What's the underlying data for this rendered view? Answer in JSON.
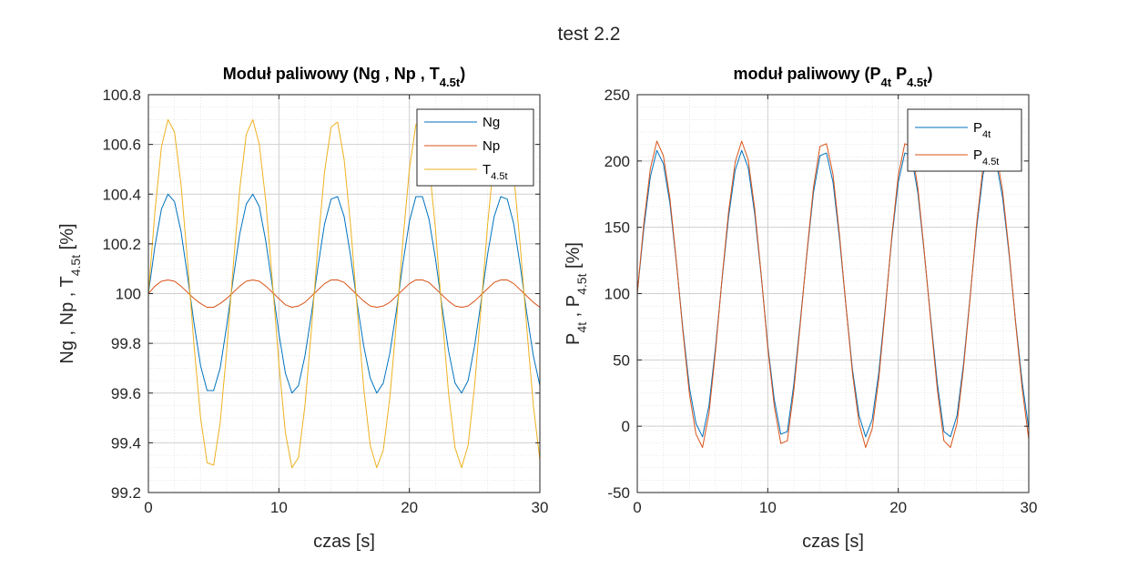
{
  "suptitle": "test 2.2",
  "colors": {
    "blue": "#0072BD",
    "orange": "#D95319",
    "yellow": "#EDB120",
    "grid": "#d9d9d9",
    "axis": "#262626"
  },
  "chart_data": [
    {
      "type": "line",
      "title": "Moduł paliwowy (Ng , Np , T",
      "title_sub": "4.5t",
      "title_tail": ")",
      "xlabel": "czas [s]",
      "ylabel": "Ng , Np , T",
      "ylabel_sub": "4.5t",
      "ylabel_tail": " [%]",
      "xlim": [
        0,
        30
      ],
      "ylim": [
        99.2,
        100.8
      ],
      "xticks": [
        0,
        10,
        20,
        30
      ],
      "yticks": [
        99.2,
        99.4,
        99.6,
        99.8,
        100,
        100.2,
        100.4,
        100.6,
        100.8
      ],
      "ytick_labels": [
        "99.2",
        "99.4",
        "99.6",
        "99.8",
        "100",
        "100.2",
        "100.4",
        "100.6",
        "100.8"
      ],
      "grid": "on (major + minor)",
      "legend_position": "top-right",
      "series": [
        {
          "name": "Ng",
          "color": "#0072BD",
          "x": [
            0,
            0.5,
            1,
            1.5,
            2,
            2.5,
            3,
            3.5,
            4,
            4.5,
            5,
            5.5,
            6,
            6.5,
            7,
            7.5,
            8,
            8.5,
            9,
            9.5,
            10,
            10.5,
            11,
            11.5,
            12,
            12.5,
            13,
            13.5,
            14,
            14.5,
            15,
            15.5,
            16,
            16.5,
            17,
            17.5,
            18,
            18.5,
            19,
            19.5,
            20,
            20.5,
            21,
            21.5,
            22,
            22.5,
            23,
            23.5,
            24,
            24.5,
            25,
            25.5,
            26,
            26.5,
            27,
            27.5,
            28,
            28.5,
            29,
            29.5,
            30
          ],
          "y": [
            100.0,
            100.19,
            100.34,
            100.4,
            100.37,
            100.25,
            100.07,
            99.88,
            99.71,
            99.61,
            99.61,
            99.7,
            99.87,
            100.06,
            100.24,
            100.36,
            100.4,
            100.35,
            100.21,
            100.03,
            99.84,
            99.68,
            99.6,
            99.63,
            99.75,
            99.92,
            100.11,
            100.28,
            100.38,
            100.39,
            100.31,
            100.15,
            99.96,
            99.79,
            99.66,
            99.6,
            99.64,
            99.76,
            99.93,
            100.12,
            100.29,
            100.39,
            100.39,
            100.3,
            100.14,
            99.95,
            99.77,
            99.64,
            99.6,
            99.65,
            99.79,
            99.97,
            100.16,
            100.31,
            100.39,
            100.38,
            100.28,
            100.11,
            99.92,
            99.75,
            99.63
          ]
        },
        {
          "name": "Np",
          "color": "#D95319",
          "x": [
            0,
            0.5,
            1,
            1.5,
            2,
            2.5,
            3,
            3.5,
            4,
            4.5,
            5,
            5.5,
            6,
            6.5,
            7,
            7.5,
            8,
            8.5,
            9,
            9.5,
            10,
            10.5,
            11,
            11.5,
            12,
            12.5,
            13,
            13.5,
            14,
            14.5,
            15,
            15.5,
            16,
            16.5,
            17,
            17.5,
            18,
            18.5,
            19,
            19.5,
            20,
            20.5,
            21,
            21.5,
            22,
            22.5,
            23,
            23.5,
            24,
            24.5,
            25,
            25.5,
            26,
            26.5,
            27,
            27.5,
            28,
            28.5,
            29,
            29.5,
            30
          ],
          "y": [
            100.0,
            100.03,
            100.05,
            100.055,
            100.05,
            100.03,
            100.005,
            99.98,
            99.96,
            99.945,
            99.945,
            99.96,
            99.98,
            100.005,
            100.03,
            100.05,
            100.055,
            100.05,
            100.03,
            100.005,
            99.98,
            99.955,
            99.945,
            99.95,
            99.965,
            99.99,
            100.015,
            100.04,
            100.055,
            100.055,
            100.045,
            100.02,
            99.995,
            99.97,
            99.95,
            99.945,
            99.95,
            99.965,
            99.99,
            100.015,
            100.04,
            100.055,
            100.055,
            100.045,
            100.02,
            99.995,
            99.97,
            99.95,
            99.945,
            99.95,
            99.97,
            99.995,
            100.02,
            100.045,
            100.055,
            100.055,
            100.04,
            100.015,
            99.99,
            99.965,
            99.945
          ]
        },
        {
          "name": "T",
          "name_sub": "4.5t",
          "color": "#EDB120",
          "x": [
            0,
            0.5,
            1,
            1.5,
            2,
            2.5,
            3,
            3.5,
            4,
            4.5,
            5,
            5.5,
            6,
            6.5,
            7,
            7.5,
            8,
            8.5,
            9,
            9.5,
            10,
            10.5,
            11,
            11.5,
            12,
            12.5,
            13,
            13.5,
            14,
            14.5,
            15,
            15.5,
            16,
            16.5,
            17,
            17.5,
            18,
            18.5,
            19,
            19.5,
            20,
            20.5,
            21,
            21.5,
            22,
            22.5,
            23,
            23.5,
            24,
            24.5,
            25,
            25.5,
            26,
            26.5,
            27,
            27.5,
            28,
            28.5,
            29,
            29.5,
            30
          ],
          "y": [
            100.0,
            100.33,
            100.59,
            100.7,
            100.65,
            100.44,
            100.13,
            99.79,
            99.5,
            99.32,
            99.31,
            99.48,
            99.77,
            100.11,
            100.42,
            100.64,
            100.7,
            100.6,
            100.37,
            100.05,
            99.72,
            99.44,
            99.3,
            99.34,
            99.55,
            99.86,
            100.2,
            100.49,
            100.67,
            100.69,
            100.54,
            100.27,
            99.94,
            99.62,
            99.39,
            99.3,
            99.37,
            99.58,
            99.88,
            100.21,
            100.5,
            100.68,
            100.68,
            100.53,
            100.26,
            99.92,
            99.6,
            99.38,
            99.3,
            99.39,
            99.63,
            99.95,
            100.28,
            100.55,
            100.69,
            100.67,
            100.48,
            100.19,
            99.86,
            99.55,
            99.33
          ]
        }
      ]
    },
    {
      "type": "line",
      "title": "moduł paliwowy (P",
      "title_sub": "4t",
      "title_mid": " P",
      "title_sub2": "4.5t",
      "title_tail": ")",
      "xlabel": "czas [s]",
      "ylabel": "P",
      "ylabel_sub": "4t",
      "ylabel_mid": " , P",
      "ylabel_sub2": "4.5t",
      "ylabel_tail": " [%]",
      "xlim": [
        0,
        30
      ],
      "ylim": [
        -50,
        250
      ],
      "xticks": [
        0,
        10,
        20,
        30
      ],
      "yticks": [
        -50,
        0,
        50,
        100,
        150,
        200,
        250
      ],
      "ytick_labels": [
        "-50",
        "0",
        "50",
        "100",
        "150",
        "200",
        "250"
      ],
      "grid": "on (major + minor)",
      "legend_position": "top-right",
      "series": [
        {
          "name": "P",
          "name_sub": "4t",
          "color": "#0072BD",
          "x": [
            0,
            0.5,
            1,
            1.5,
            2,
            2.5,
            3,
            3.5,
            4,
            4.5,
            5,
            5.5,
            6,
            6.5,
            7,
            7.5,
            8,
            8.5,
            9,
            9.5,
            10,
            10.5,
            11,
            11.5,
            12,
            12.5,
            13,
            13.5,
            14,
            14.5,
            15,
            15.5,
            16,
            16.5,
            17,
            17.5,
            18,
            18.5,
            19,
            19.5,
            20,
            20.5,
            21,
            21.5,
            22,
            22.5,
            23,
            23.5,
            24,
            24.5,
            25,
            25.5,
            26,
            26.5,
            27,
            27.5,
            28,
            28.5,
            29,
            29.5,
            30
          ],
          "y": [
            100,
            149,
            188,
            208,
            198,
            168,
            123,
            73,
            29,
            2,
            -8,
            16,
            60,
            111,
            158,
            193,
            208,
            195,
            160,
            113,
            61,
            20,
            -6,
            -4,
            32,
            80,
            130,
            176,
            204,
            206,
            184,
            141,
            90,
            42,
            8,
            -8,
            5,
            40,
            89,
            141,
            184,
            206,
            204,
            176,
            130,
            80,
            32,
            -4,
            -8,
            8,
            47,
            97,
            149,
            190,
            207,
            200,
            172,
            129,
            78,
            33,
            -2
          ]
        },
        {
          "name": "P",
          "name_sub": "4.5t",
          "color": "#D95319",
          "x": [
            0,
            0.5,
            1,
            1.5,
            2,
            2.5,
            3,
            3.5,
            4,
            4.5,
            5,
            5.5,
            6,
            6.5,
            7,
            7.5,
            8,
            8.5,
            9,
            9.5,
            10,
            10.5,
            11,
            11.5,
            12,
            12.5,
            13,
            13.5,
            14,
            14.5,
            15,
            15.5,
            16,
            16.5,
            17,
            17.5,
            18,
            18.5,
            19,
            19.5,
            20,
            20.5,
            21,
            21.5,
            22,
            22.5,
            23,
            23.5,
            24,
            24.5,
            25,
            25.5,
            26,
            26.5,
            27,
            27.5,
            28,
            28.5,
            29,
            29.5,
            30
          ],
          "y": [
            100,
            153,
            194,
            215,
            204,
            172,
            124,
            71,
            24,
            -6,
            -16,
            10,
            57,
            112,
            162,
            199,
            215,
            201,
            164,
            114,
            59,
            15,
            -13,
            -11,
            27,
            78,
            131,
            180,
            211,
            213,
            190,
            144,
            90,
            39,
            2,
            -16,
            -2,
            35,
            87,
            143,
            189,
            213,
            211,
            180,
            131,
            78,
            27,
            -11,
            -16,
            2,
            44,
            96,
            152,
            196,
            214,
            207,
            177,
            131,
            77,
            28,
            -10
          ]
        }
      ]
    }
  ]
}
